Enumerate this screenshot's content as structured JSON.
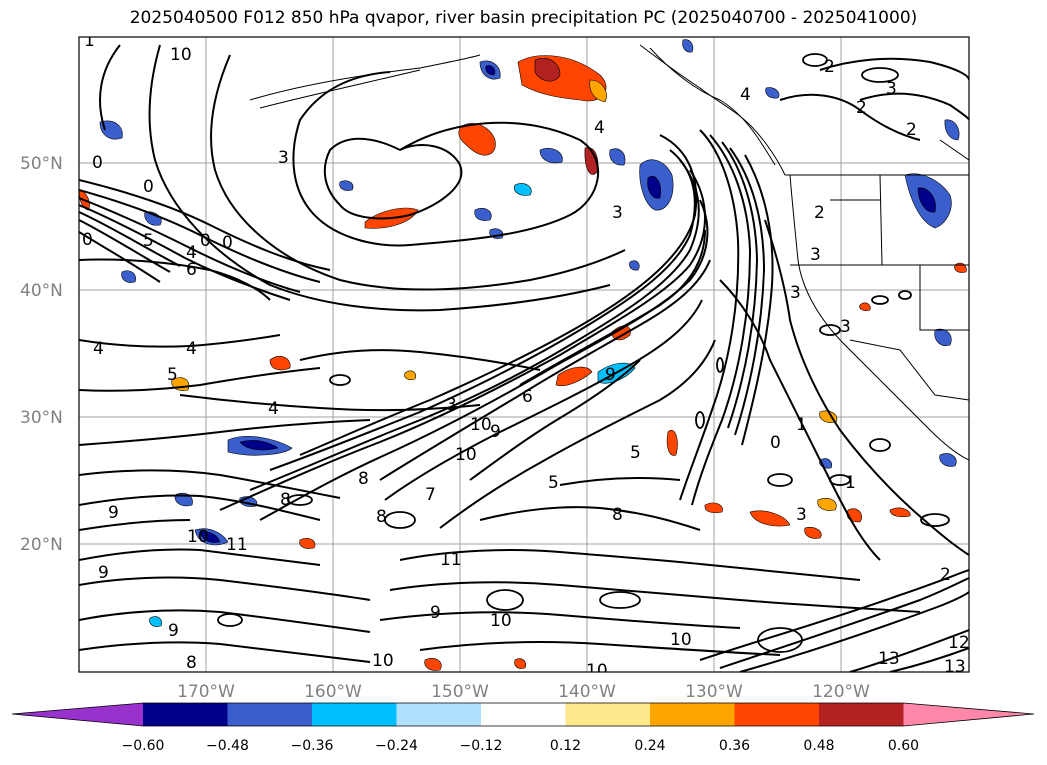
{
  "title": "2025040500 F012 850 hPa qvapor, river basin precipitation PC (2025040700 - 2025041000)",
  "map": {
    "lat_labels": [
      "50°N",
      "40°N",
      "30°N",
      "20°N"
    ],
    "lon_labels": [
      "170°W",
      "160°W",
      "150°W",
      "140°W",
      "130°W",
      "120°W"
    ]
  },
  "contour_labels": [
    "1",
    "0",
    "10",
    "2",
    "3",
    "4",
    "2",
    "3",
    "2",
    "3",
    "0",
    "0",
    "4",
    "5",
    "6",
    "0",
    "0",
    "4",
    "4",
    "5",
    "4",
    "3",
    "9",
    "10",
    "10",
    "8",
    "9",
    "7",
    "5",
    "6",
    "8",
    "5",
    "9",
    "10",
    "11",
    "11",
    "1",
    "0",
    "1",
    "2",
    "3",
    "3",
    "9",
    "9",
    "10",
    "8",
    "9",
    "8",
    "8",
    "10",
    "10",
    "10",
    "12",
    "13",
    "13",
    "3",
    "3",
    "2",
    "4"
  ],
  "colorbar": {
    "ticks": [
      "−0.60",
      "−0.48",
      "−0.36",
      "−0.24",
      "−0.12",
      "0.12",
      "0.24",
      "0.36",
      "0.48",
      "0.60"
    ],
    "colors": [
      "#9932cc",
      "#00008b",
      "#3a5fcd",
      "#00bfff",
      "#b0e2ff",
      "#ffffff",
      "#ffe88c",
      "#ffa500",
      "#ff4500",
      "#b22222",
      "#ff88aa"
    ]
  }
}
